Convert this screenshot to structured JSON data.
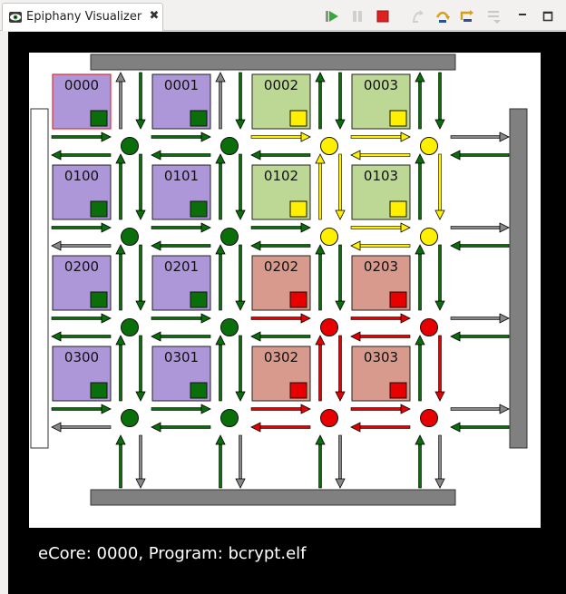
{
  "tab": {
    "title": "Epiphany Visualizer",
    "close_glyph": "✖",
    "icon": "eye-icon"
  },
  "toolbar": {
    "buttons": [
      {
        "name": "run-button",
        "icon": "run-icon",
        "enabled": true
      },
      {
        "name": "pause-button",
        "icon": "pause-icon",
        "enabled": false
      },
      {
        "name": "stop-button",
        "icon": "stop-icon",
        "enabled": true
      },
      {
        "name": "step-into-button",
        "icon": "step-into-icon",
        "enabled": false
      },
      {
        "name": "step-over-button",
        "icon": "step-over-icon",
        "enabled": true
      },
      {
        "name": "step-return-button",
        "icon": "step-return-icon",
        "enabled": true
      },
      {
        "name": "view-menu-button",
        "icon": "view-menu-icon",
        "enabled": false
      },
      {
        "name": "minimize-button",
        "icon": "minimize-icon",
        "enabled": true
      },
      {
        "name": "maximize-button",
        "icon": "maximize-icon",
        "enabled": true
      }
    ]
  },
  "colors": {
    "purple": "#ae97d8",
    "green_core": "#bcd894",
    "red_core": "#d79a8c",
    "dark_green": "#0a6e0a",
    "yellow": "#ffef00",
    "red": "#e80000",
    "gray": "#888888",
    "white": "#ffffff"
  },
  "mesh": {
    "cores": [
      [
        {
          "id": "0000",
          "state": "purple",
          "status": "green",
          "selected": true
        },
        {
          "id": "0001",
          "state": "purple",
          "status": "green"
        },
        {
          "id": "0002",
          "state": "green_core",
          "status": "yellow"
        },
        {
          "id": "0003",
          "state": "green_core",
          "status": "yellow"
        }
      ],
      [
        {
          "id": "0100",
          "state": "purple",
          "status": "green"
        },
        {
          "id": "0101",
          "state": "purple",
          "status": "green"
        },
        {
          "id": "0102",
          "state": "green_core",
          "status": "yellow"
        },
        {
          "id": "0103",
          "state": "green_core",
          "status": "yellow"
        }
      ],
      [
        {
          "id": "0200",
          "state": "purple",
          "status": "green"
        },
        {
          "id": "0201",
          "state": "purple",
          "status": "green"
        },
        {
          "id": "0202",
          "state": "red_core",
          "status": "red"
        },
        {
          "id": "0203",
          "state": "red_core",
          "status": "red"
        }
      ],
      [
        {
          "id": "0300",
          "state": "purple",
          "status": "green"
        },
        {
          "id": "0301",
          "state": "purple",
          "status": "green"
        },
        {
          "id": "0302",
          "state": "red_core",
          "status": "red"
        },
        {
          "id": "0303",
          "state": "red_core",
          "status": "red"
        }
      ]
    ],
    "routers": [
      [
        "green",
        "green",
        "yellow",
        "yellow"
      ],
      [
        "green",
        "green",
        "yellow",
        "yellow"
      ],
      [
        "green",
        "green",
        "red",
        "red"
      ],
      [
        "green",
        "green",
        "red",
        "red"
      ]
    ],
    "h_links": [
      [
        [
          "green",
          "green"
        ],
        [
          "green",
          "green"
        ],
        [
          "yellow",
          "green"
        ],
        [
          "yellow",
          "yellow"
        ],
        [
          "gray",
          "green"
        ]
      ],
      [
        [
          "green",
          "gray"
        ],
        [
          "green",
          "green"
        ],
        [
          "green",
          "green"
        ],
        [
          "yellow",
          "yellow"
        ],
        [
          "gray",
          "green"
        ]
      ],
      [
        [
          "green",
          "green"
        ],
        [
          "green",
          "green"
        ],
        [
          "red",
          "green"
        ],
        [
          "red",
          "red"
        ],
        [
          "gray",
          "green"
        ]
      ],
      [
        [
          "green",
          "gray"
        ],
        [
          "green",
          "green"
        ],
        [
          "red",
          "red"
        ],
        [
          "red",
          "red"
        ],
        [
          "gray",
          "green"
        ]
      ]
    ],
    "v_links": [
      [
        [
          "gray",
          "green"
        ],
        [
          "gray",
          "green"
        ],
        [
          "green",
          "green"
        ],
        [
          "green",
          "green"
        ]
      ],
      [
        [
          "green",
          "green"
        ],
        [
          "green",
          "green"
        ],
        [
          "yellow",
          "yellow"
        ],
        [
          "green",
          "yellow"
        ]
      ],
      [
        [
          "green",
          "green"
        ],
        [
          "green",
          "green"
        ],
        [
          "green",
          "green"
        ],
        [
          "green",
          "green"
        ]
      ],
      [
        [
          "green",
          "green"
        ],
        [
          "green",
          "green"
        ],
        [
          "red",
          "red"
        ],
        [
          "green",
          "red"
        ]
      ],
      [
        [
          "green",
          "gray"
        ],
        [
          "green",
          "gray"
        ],
        [
          "green",
          "gray"
        ],
        [
          "green",
          "gray"
        ]
      ]
    ]
  },
  "status": "eCore: 0000, Program: bcrypt.elf"
}
